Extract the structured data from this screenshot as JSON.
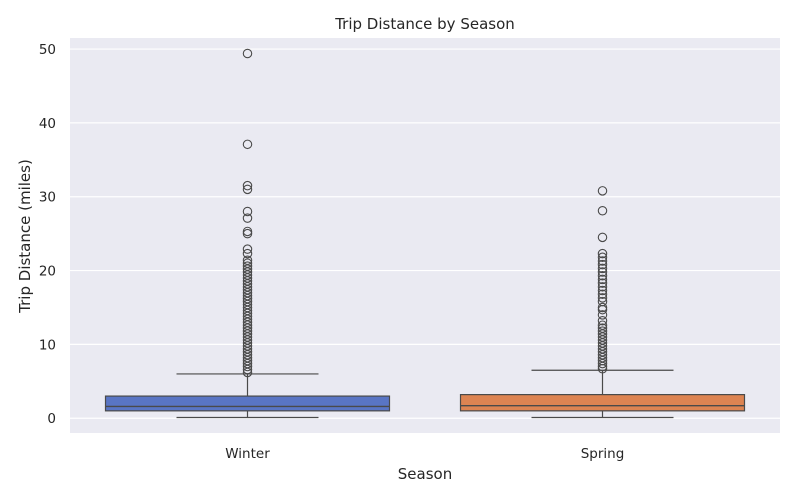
{
  "chart_data": {
    "type": "box",
    "title": "Trip Distance by Season",
    "xlabel": "Season",
    "ylabel": "Trip Distance (miles)",
    "ylim": [
      -2,
      51.5
    ],
    "yticks": [
      0,
      10,
      20,
      30,
      40,
      50
    ],
    "grid": true,
    "legend": "none",
    "categories": [
      "Winter",
      "Spring"
    ],
    "boxes": [
      {
        "category": "Winter",
        "color": "#5975c4",
        "whisker_low": 0.1,
        "q1": 1.0,
        "median": 1.6,
        "q3": 3.0,
        "whisker_high": 6.0,
        "outliers": [
          49.4,
          37.1,
          31.5,
          31.0,
          28.0,
          27.1,
          25.3,
          25.0,
          22.9,
          22.3,
          21.4,
          21.0,
          20.6,
          20.2,
          19.8,
          19.4,
          19.0,
          18.6,
          18.2,
          17.8,
          17.4,
          17.0,
          16.6,
          16.2,
          15.8,
          15.4,
          15.0,
          14.6,
          14.2,
          13.8,
          13.4,
          13.0,
          12.6,
          12.2,
          11.8,
          11.4,
          11.0,
          10.6,
          10.2,
          9.8,
          9.4,
          9.0,
          8.6,
          8.2,
          7.8,
          7.4,
          7.0,
          6.6,
          6.2
        ]
      },
      {
        "category": "Spring",
        "color": "#dd8452",
        "whisker_low": 0.1,
        "q1": 1.0,
        "median": 1.7,
        "q3": 3.2,
        "whisker_high": 6.5,
        "outliers": [
          30.8,
          28.1,
          24.5,
          22.3,
          21.8,
          21.3,
          20.8,
          20.3,
          19.8,
          19.3,
          18.8,
          18.3,
          17.8,
          17.3,
          16.8,
          16.3,
          15.8,
          15.0,
          14.7,
          14.0,
          13.2,
          12.6,
          12.2,
          11.8,
          11.4,
          11.0,
          10.6,
          10.2,
          9.8,
          9.4,
          9.0,
          8.6,
          8.2,
          7.8,
          7.4,
          7.0,
          6.7
        ]
      }
    ]
  }
}
